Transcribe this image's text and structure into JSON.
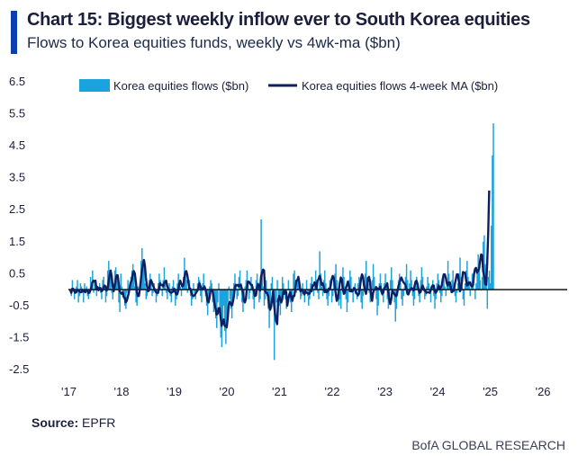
{
  "header": {
    "title": "Chart 15: Biggest weekly inflow ever to South Korea equities",
    "subtitle": "Flows to Korea equities funds, weekly vs 4wk-ma ($bn)"
  },
  "footer": {
    "source_label": "Source:",
    "source_value": "EPFR",
    "brand": "BofA GLOBAL RESEARCH"
  },
  "colors": {
    "accent": "#0b3fb0",
    "bars": "#1aa3dc",
    "ma_line": "#0d1f63",
    "zero_line": "#000000"
  },
  "chart_data": {
    "type": "bar",
    "title": "Chart 15: Biggest weekly inflow ever to South Korea equities",
    "subtitle": "Flows to Korea equities funds, weekly vs 4wk-ma ($bn)",
    "ylim": [
      -2.5,
      6.5
    ],
    "yticks": [
      "6.5",
      "5.5",
      "4.5",
      "3.5",
      "2.5",
      "1.5",
      "0.5",
      "-0.5",
      "-1.5",
      "-2.5"
    ],
    "xlim": [
      2017.0,
      2026.4
    ],
    "xticks": [
      {
        "label": "'17",
        "year": 2017
      },
      {
        "label": "'18",
        "year": 2018
      },
      {
        "label": "'19",
        "year": 2019
      },
      {
        "label": "'20",
        "year": 2020
      },
      {
        "label": "'21",
        "year": 2021
      },
      {
        "label": "'22",
        "year": 2022
      },
      {
        "label": "'23",
        "year": 2023
      },
      {
        "label": "'24",
        "year": 2024
      },
      {
        "label": "'25",
        "year": 2025
      },
      {
        "label": "'26",
        "year": 2026
      }
    ],
    "grid": false,
    "legend_position": "top",
    "series": [
      {
        "name": "Korea equities flows ($bn)",
        "kind": "bar"
      },
      {
        "name": "Korea equities flows 4-week MA ($bn)",
        "kind": "line"
      }
    ],
    "x_start": "2017-01",
    "x_step_weeks": 1,
    "values": [
      0.0,
      -0.2,
      0.3,
      0.0,
      -0.3,
      -0.1,
      0.1,
      0.3,
      -0.4,
      -0.2,
      0.2,
      0.1,
      -0.1,
      -0.4,
      0.2,
      0.0,
      0.1,
      -0.2,
      -0.3,
      0.0,
      0.4,
      0.2,
      0.6,
      -0.1,
      0.3,
      0.1,
      -0.2,
      0.1,
      0.0,
      0.2,
      -0.1,
      -0.3,
      0.3,
      0.4,
      0.1,
      -0.4,
      -0.2,
      0.6,
      0.9,
      0.5,
      0.4,
      -0.1,
      -0.3,
      0.2,
      0.6,
      0.7,
      0.3,
      0.2,
      -0.4,
      -0.7,
      0.5,
      0.1,
      -0.2,
      -0.3,
      -0.5,
      -0.6,
      -0.1,
      0.3,
      0.0,
      0.2,
      0.4,
      0.6,
      0.8,
      0.5,
      0.1,
      -0.4,
      -0.5,
      0.1,
      0.0,
      0.2,
      0.9,
      1.3,
      0.7,
      0.8,
      0.2,
      -0.3,
      -0.2,
      0.1,
      0.3,
      0.5,
      0.3,
      -0.2,
      -0.1,
      0.2,
      0.0,
      -0.4,
      -0.2,
      0.2,
      0.5,
      0.3,
      0.0,
      -0.2,
      0.3,
      0.7,
      0.2,
      -0.1,
      -0.3,
      0.0,
      0.2,
      -0.2,
      -0.4,
      0.1,
      0.3,
      -0.1,
      -0.5,
      -0.3,
      0.2,
      0.5,
      0.3,
      0.1,
      -0.2,
      0.2,
      0.4,
      1.0,
      0.6,
      0.3,
      -0.1,
      0.1,
      0.3,
      -0.2,
      -0.5,
      -0.3,
      0.2,
      -0.1,
      -0.3,
      -0.1,
      0.2,
      0.4,
      0.3,
      -0.2,
      -0.4,
      0.2,
      0.5,
      0.1,
      -0.2,
      -0.5,
      -0.8,
      -0.3,
      0.1,
      0.3,
      0.2,
      -0.4,
      -0.7,
      -0.5,
      -0.9,
      -1.2,
      -0.4,
      0.2,
      -0.8,
      -1.5,
      -1.8,
      -1.0,
      -0.5,
      -1.3,
      -1.7,
      -1.2,
      -0.4,
      0.1,
      -0.3,
      -0.6,
      -0.9,
      -0.5,
      0.2,
      0.5,
      0.1,
      -0.3,
      -0.2,
      0.4,
      0.6,
      0.2,
      -0.4,
      -0.7,
      -0.3,
      0.1,
      0.3,
      0.6,
      0.2,
      -0.3,
      -0.1,
      0.4,
      0.1,
      -0.3,
      -0.6,
      -0.2,
      0.3,
      0.5,
      0.1,
      -0.4,
      -0.3,
      2.2,
      0.6,
      0.1,
      -0.5,
      -0.3,
      0.3,
      -0.2,
      -0.6,
      -1.2,
      -0.5,
      0.2,
      0.4,
      -0.3,
      -2.2,
      -1.0,
      -0.4,
      0.3,
      -0.2,
      -0.5,
      -0.8,
      -0.3,
      0.4,
      0.2,
      -0.1,
      -0.3,
      -0.6,
      0.0,
      0.3,
      -0.2,
      -0.4,
      -0.7,
      -0.2,
      0.5,
      0.6,
      0.2,
      -0.1,
      0.3,
      0.4,
      0.1,
      -0.3,
      -0.2,
      0.2,
      -0.1,
      -0.4,
      0.0,
      0.3,
      -0.2,
      -0.5,
      -0.3,
      0.2,
      0.4,
      0.1,
      -0.2,
      0.2,
      0.6,
      0.3,
      -0.1,
      -0.3,
      1.2,
      0.5,
      0.1,
      -0.2,
      0.3,
      0.6,
      0.2,
      -0.3,
      -0.5,
      -0.2,
      0.3,
      0.1,
      -0.4,
      -0.2,
      0.2,
      0.5,
      0.8,
      0.3,
      -0.1,
      -0.5,
      -0.3,
      -0.6,
      0.3,
      0.7,
      0.4,
      0.1,
      -0.3,
      -0.7,
      -0.4,
      0.3,
      0.6,
      0.4,
      -0.1,
      -0.4,
      0.1,
      0.2,
      -0.1,
      -0.3,
      0.2,
      0.4,
      0.1,
      -0.4,
      -0.6,
      -0.2,
      0.1,
      0.5,
      0.9,
      0.4,
      0.2,
      -0.1,
      -0.4,
      -0.2,
      0.3,
      0.8,
      0.4,
      0.1,
      -0.3,
      -0.8,
      -0.5,
      0.2,
      0.5,
      0.2,
      -0.2,
      -0.4,
      0.2,
      0.5,
      0.1,
      -0.3,
      -0.6,
      -0.2,
      0.3,
      0.7,
      0.3,
      -0.1,
      -0.4,
      -1.0,
      -0.6,
      -0.2,
      0.3,
      0.5,
      0.2,
      -0.3,
      -0.5,
      -0.2,
      0.1,
      0.4,
      0.8,
      0.3,
      -0.1,
      0.2,
      0.6,
      0.3,
      -0.2,
      -0.5,
      -0.3,
      0.2,
      0.4,
      0.1,
      -0.2,
      -0.4,
      0.3,
      0.7,
      0.4,
      0.0,
      -0.3,
      -0.2,
      0.1,
      0.4,
      0.2,
      -0.1,
      -0.4,
      0.1,
      0.3,
      -0.2,
      -0.6,
      -0.3,
      0.2,
      0.5,
      0.3,
      -0.1,
      -0.4,
      -0.2,
      0.2,
      0.4,
      0.1,
      -0.2,
      0.3,
      0.9,
      0.5,
      0.2,
      -0.1,
      0.3,
      0.6,
      0.2,
      -0.2,
      -0.4,
      -0.1,
      0.2,
      0.5,
      1.0,
      0.4,
      0.1,
      -0.3,
      -0.5,
      0.2,
      0.6,
      0.9,
      0.4,
      0.2,
      -0.2,
      0.1,
      0.5,
      0.3,
      0.0,
      -0.3,
      0.2,
      0.6,
      1.1,
      0.7,
      0.3,
      0.0,
      0.4,
      1.5,
      1.7,
      0.8,
      0.3,
      -0.6,
      0.4,
      0.6,
      0.2,
      2.0,
      4.2,
      5.2
    ],
    "ma": [
      0.0,
      -0.1,
      0.03,
      0.03,
      -0.05,
      -0.1,
      -0.08,
      0.0,
      -0.03,
      -0.05,
      -0.08,
      -0.08,
      0.0,
      -0.05,
      -0.05,
      -0.08,
      0.0,
      -0.02,
      -0.1,
      -0.1,
      -0.02,
      0.08,
      0.23,
      0.28,
      0.25,
      0.28,
      0.03,
      0.08,
      -0.02,
      0.05,
      0.05,
      -0.05,
      -0.02,
      0.08,
      0.13,
      0.1,
      -0.03,
      0.03,
      0.23,
      0.45,
      0.6,
      0.43,
      0.13,
      -0.05,
      0.1,
      0.3,
      0.45,
      0.45,
      0.2,
      -0.05,
      -0.1,
      -0.13,
      -0.08,
      -0.23,
      -0.25,
      -0.4,
      -0.35,
      -0.23,
      -0.1,
      0.1,
      0.23,
      0.3,
      0.5,
      0.58,
      0.5,
      0.25,
      -0.08,
      -0.2,
      -0.2,
      0.03,
      0.3,
      0.6,
      0.78,
      0.93,
      0.75,
      0.35,
      0.13,
      -0.05,
      -0.03,
      0.18,
      0.3,
      0.23,
      0.13,
      0.05,
      -0.03,
      -0.08,
      -0.1,
      -0.1,
      0.03,
      0.2,
      0.15,
      0.15,
      0.1,
      0.2,
      0.25,
      0.28,
      0.13,
      0.03,
      -0.05,
      -0.08,
      -0.1,
      -0.08,
      -0.05,
      0.03,
      -0.05,
      -0.15,
      -0.15,
      -0.03,
      0.18,
      0.28,
      0.18,
      0.1,
      0.13,
      0.35,
      0.55,
      0.58,
      0.45,
      0.23,
      0.05,
      0.03,
      -0.08,
      -0.18,
      -0.2,
      -0.18,
      -0.13,
      -0.08,
      -0.03,
      0.05,
      0.2,
      0.1,
      0.03,
      0.0,
      0.05,
      0.1,
      0.0,
      -0.13,
      -0.35,
      -0.4,
      -0.25,
      -0.03,
      0.0,
      -0.05,
      -0.23,
      -0.45,
      -0.6,
      -0.78,
      -0.75,
      -0.58,
      -0.58,
      -0.88,
      -1.13,
      -1.03,
      -0.93,
      -1.13,
      -1.13,
      -1.18,
      -0.9,
      -0.45,
      -0.38,
      -0.45,
      -0.5,
      -0.4,
      -0.23,
      0.05,
      0.15,
      0.13,
      0.15,
      0.1,
      0.15,
      0.15,
      0.03,
      -0.08,
      -0.33,
      -0.4,
      -0.3,
      0.05,
      0.25,
      0.25,
      0.2,
      0.15,
      0.15,
      0.0,
      -0.05,
      -0.2,
      -0.18,
      0.05,
      0.18,
      0.13,
      -0.03,
      0.4,
      0.53,
      0.63,
      0.6,
      -0.03,
      -0.1,
      -0.1,
      -0.2,
      -0.5,
      -0.63,
      -0.53,
      -0.28,
      -0.05,
      -0.5,
      -0.78,
      -0.98,
      -1.08,
      -0.33,
      -0.2,
      -0.3,
      -0.4,
      -0.3,
      -0.05,
      -0.13,
      -0.05,
      -0.08,
      -0.5,
      -0.3,
      -0.15,
      -0.08,
      -0.25,
      -0.35,
      -0.2,
      -0.2,
      0.04,
      0.28,
      0.3,
      0.4,
      0.2,
      -0.05,
      -0.0,
      0.0,
      -0.1,
      -0.15,
      -0.05,
      -0.1,
      -0.1,
      -0.13,
      -0.13,
      -0.03,
      -0.05,
      0.13,
      0.13,
      0.23,
      0.2,
      0.03,
      0.28,
      0.33,
      0.43,
      0.35,
      0.15,
      0.2,
      0.1,
      -0.08,
      -0.05,
      -0.08,
      -0.05,
      0.03,
      0.0,
      0.13,
      0.33,
      0.43,
      0.38,
      0.13,
      -0.13,
      -0.35,
      -0.28,
      -0.03,
      0.2,
      0.38,
      0.33,
      0.03,
      -0.13,
      -0.1,
      0.05,
      0.13,
      0.25,
      0.13,
      -0.05,
      -0.05,
      -0.05,
      -0.03,
      0.05,
      0.03,
      -0.1,
      -0.13,
      -0.18,
      -0.13,
      0.08,
      0.33,
      0.48,
      0.4,
      0.13,
      -0.03,
      -0.13,
      0.08,
      0.35,
      0.4,
      0.25,
      -0.15,
      -0.35,
      -0.1,
      0.0,
      0.0,
      0.08,
      0.03,
      0.03,
      0.02,
      0.1,
      -0.03,
      -0.13,
      -0.1,
      0.05,
      0.08,
      0.13,
      0.2,
      -0.05,
      -0.3,
      -0.45,
      -0.3,
      -0.03,
      -0.1,
      -0.13,
      -0.18,
      -0.2,
      -0.08,
      0.1,
      0.2,
      0.3,
      0.38,
      0.3,
      0.23,
      0.2,
      0.15,
      0.03,
      -0.13,
      -0.15,
      -0.05,
      0.0,
      0.05,
      0.03,
      -0.03,
      0.1,
      0.25,
      0.28,
      0.18,
      0.0,
      -0.1,
      -0.08,
      0.05,
      0.13,
      0.05,
      -0.03,
      -0.05,
      -0.1,
      -0.08,
      -0.08,
      -0.1,
      -0.03,
      0.08,
      0.13,
      0.13,
      -0.05,
      -0.1,
      -0.05,
      0.03,
      0.13,
      0.05,
      0.05,
      0.13,
      0.33,
      0.48,
      0.48,
      0.38,
      0.2,
      0.13,
      0.23,
      0.23,
      0.05,
      -0.08,
      -0.05,
      -0.03,
      0.18,
      0.33,
      0.48,
      0.48,
      0.25,
      -0.05,
      0.01,
      0.25,
      0.55,
      0.53,
      0.53,
      0.33,
      0.13,
      0.15,
      0.23,
      0.23,
      0.13,
      0.1,
      0.15,
      0.49,
      0.65,
      0.68,
      0.53,
      0.6,
      0.65,
      0.9,
      1.1,
      1.08,
      0.58,
      0.43,
      0.18,
      0.15,
      0.8,
      1.75,
      3.1
    ]
  }
}
